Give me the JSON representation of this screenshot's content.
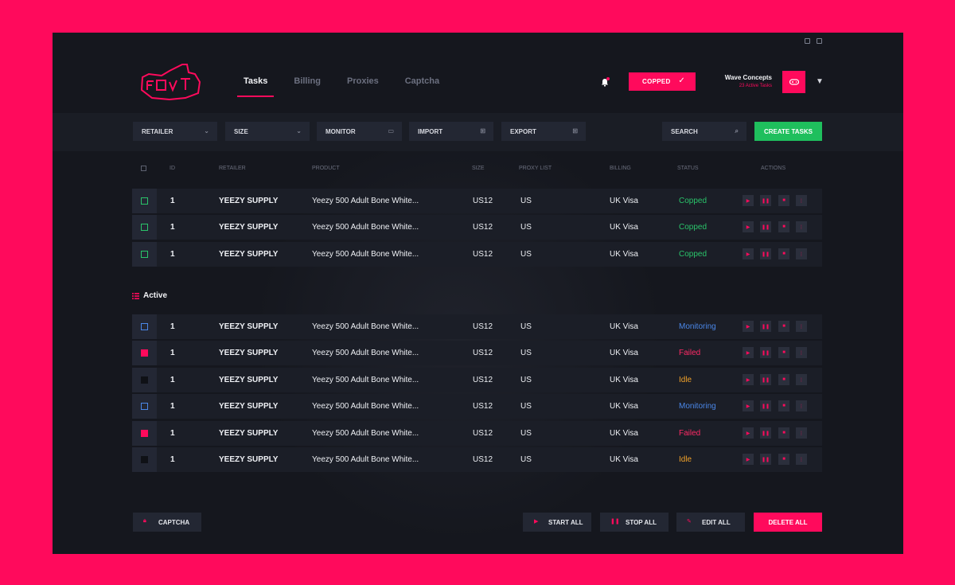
{
  "nav": {
    "tabs": [
      {
        "label": "Tasks"
      },
      {
        "label": "Billing"
      },
      {
        "label": "Proxies"
      },
      {
        "label": "Captcha"
      }
    ]
  },
  "header": {
    "copped_label": "COPPED",
    "user_name": "Wave Concepts",
    "user_sub": "23 Active Tasks"
  },
  "toolbar": {
    "retailer": "RETAILER",
    "size": "SIZE",
    "monitor": "MONITOR",
    "import": "IMPORT",
    "export": "EXPORT",
    "search": "SEARCH",
    "create": "CREATE TASKS"
  },
  "table": {
    "headers": {
      "id": "ID",
      "retailer": "RETAILER",
      "product": "PRODUCT",
      "size": "SIZE",
      "proxy": "PROXY LIST",
      "billing": "BILLING",
      "status": "STATUS",
      "actions": "ACTIONS"
    },
    "copped_rows": [
      {
        "id": "1",
        "retailer": "YEEZY SUPPLY",
        "product": "Yeezy 500 Adult Bone White...",
        "size": "US12",
        "proxy": "US",
        "billing": "UK Visa",
        "status": "Copped"
      },
      {
        "id": "1",
        "retailer": "YEEZY SUPPLY",
        "product": "Yeezy 500 Adult Bone White...",
        "size": "US12",
        "proxy": "US",
        "billing": "UK Visa",
        "status": "Copped"
      },
      {
        "id": "1",
        "retailer": "YEEZY SUPPLY",
        "product": "Yeezy 500 Adult Bone White...",
        "size": "US12",
        "proxy": "US",
        "billing": "UK Visa",
        "status": "Copped"
      }
    ],
    "section_label": "Active",
    "active_rows": [
      {
        "id": "1",
        "retailer": "YEEZY SUPPLY",
        "product": "Yeezy 500 Adult Bone White...",
        "size": "US12",
        "proxy": "US",
        "billing": "UK Visa",
        "status": "Monitoring"
      },
      {
        "id": "1",
        "retailer": "YEEZY SUPPLY",
        "product": "Yeezy 500 Adult Bone White...",
        "size": "US12",
        "proxy": "US",
        "billing": "UK Visa",
        "status": "Failed"
      },
      {
        "id": "1",
        "retailer": "YEEZY SUPPLY",
        "product": "Yeezy 500 Adult Bone White...",
        "size": "US12",
        "proxy": "US",
        "billing": "UK Visa",
        "status": "Idle"
      },
      {
        "id": "1",
        "retailer": "YEEZY SUPPLY",
        "product": "Yeezy 500 Adult Bone White...",
        "size": "US12",
        "proxy": "US",
        "billing": "UK Visa",
        "status": "Monitoring"
      },
      {
        "id": "1",
        "retailer": "YEEZY SUPPLY",
        "product": "Yeezy 500 Adult Bone White...",
        "size": "US12",
        "proxy": "US",
        "billing": "UK Visa",
        "status": "Failed"
      },
      {
        "id": "1",
        "retailer": "YEEZY SUPPLY",
        "product": "Yeezy 500 Adult Bone White...",
        "size": "US12",
        "proxy": "US",
        "billing": "UK Visa",
        "status": "Idle"
      }
    ]
  },
  "footer": {
    "captcha": "CAPTCHA",
    "start_all": "START ALL",
    "stop_all": "STOP ALL",
    "edit_all": "EDIT ALL",
    "delete_all": "DELETE ALL"
  },
  "colors": {
    "accent": "#ff0a5c",
    "success": "#1fbf5d",
    "monitoring": "#4a87e8",
    "idle": "#f0a12a",
    "background": "#15171e"
  },
  "icons": [
    "twitter-icon",
    "discord-icon",
    "bell-icon",
    "check-icon",
    "gamepad-icon",
    "chevron-down-icon",
    "monitor-icon",
    "import-icon",
    "export-icon",
    "search-icon",
    "play-icon",
    "pause-icon",
    "trash-icon",
    "more-icon",
    "list-icon",
    "lock-icon",
    "edit-icon"
  ]
}
